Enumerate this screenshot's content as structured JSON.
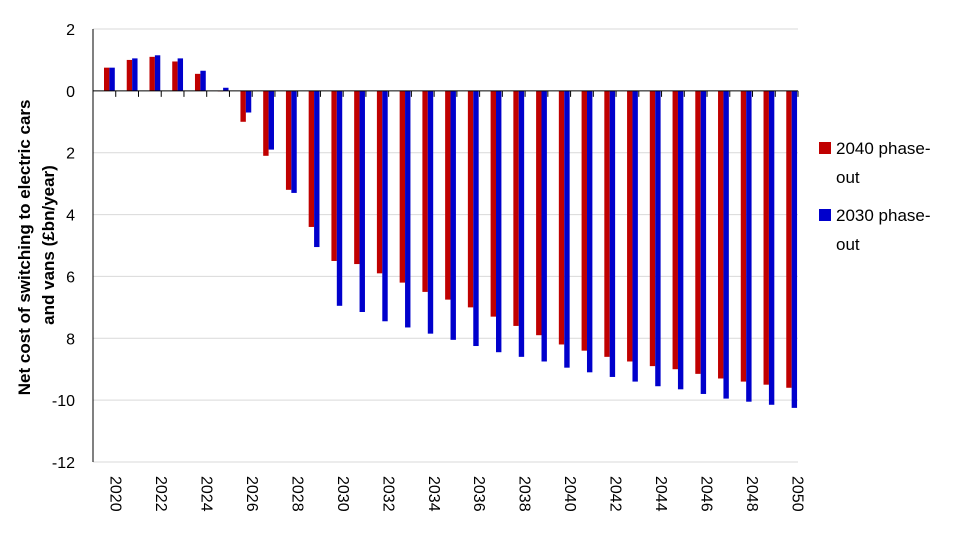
{
  "chart_data": {
    "type": "bar",
    "ylabel_lines": [
      "Net cost of switching to electric cars",
      "and vans (£bn/year)"
    ],
    "xlabel": "",
    "ylim": [
      -12,
      2
    ],
    "yticks": [
      2,
      0,
      -2,
      -4,
      -6,
      -8,
      -10,
      -12
    ],
    "ytick_labels": [
      "2",
      "0",
      "2",
      "4",
      "6",
      "8",
      "-10",
      "-12"
    ],
    "grid": true,
    "legend_position": "right",
    "categories": [
      2020,
      2021,
      2022,
      2023,
      2024,
      2025,
      2026,
      2027,
      2028,
      2029,
      2030,
      2031,
      2032,
      2033,
      2034,
      2035,
      2036,
      2037,
      2038,
      2039,
      2040,
      2041,
      2042,
      2043,
      2044,
      2045,
      2046,
      2047,
      2048,
      2049,
      2050
    ],
    "xtick_labels": [
      "2020",
      "2022",
      "2024",
      "2026",
      "2028",
      "2030",
      "2032",
      "2034",
      "2036",
      "2038",
      "2040",
      "2042",
      "2044",
      "2046",
      "2048",
      "2050"
    ],
    "series": [
      {
        "name": "2040 phase-out",
        "color": "#C00000",
        "values": [
          0.75,
          1.0,
          1.1,
          0.95,
          0.55,
          0.0,
          -1.0,
          -2.1,
          -3.2,
          -4.4,
          -5.5,
          -5.6,
          -5.9,
          -6.2,
          -6.5,
          -6.75,
          -7.0,
          -7.3,
          -7.6,
          -7.9,
          -8.2,
          -8.4,
          -8.6,
          -8.75,
          -8.9,
          -9.0,
          -9.15,
          -9.3,
          -9.4,
          -9.5,
          -9.6
        ]
      },
      {
        "name": "2030 phase-out",
        "color": "#0000CC",
        "values": [
          0.75,
          1.05,
          1.15,
          1.05,
          0.65,
          0.1,
          -0.7,
          -1.9,
          -3.3,
          -5.05,
          -6.95,
          -7.15,
          -7.45,
          -7.65,
          -7.85,
          -8.05,
          -8.25,
          -8.45,
          -8.6,
          -8.75,
          -8.95,
          -9.1,
          -9.25,
          -9.4,
          -9.55,
          -9.65,
          -9.8,
          -9.95,
          -10.05,
          -10.15,
          -10.25
        ]
      }
    ],
    "legend": [
      {
        "lines": [
          "2040 phase-",
          "out"
        ],
        "color": "#C00000"
      },
      {
        "lines": [
          "2030 phase-",
          "out"
        ],
        "color": "#0000CC"
      }
    ]
  }
}
